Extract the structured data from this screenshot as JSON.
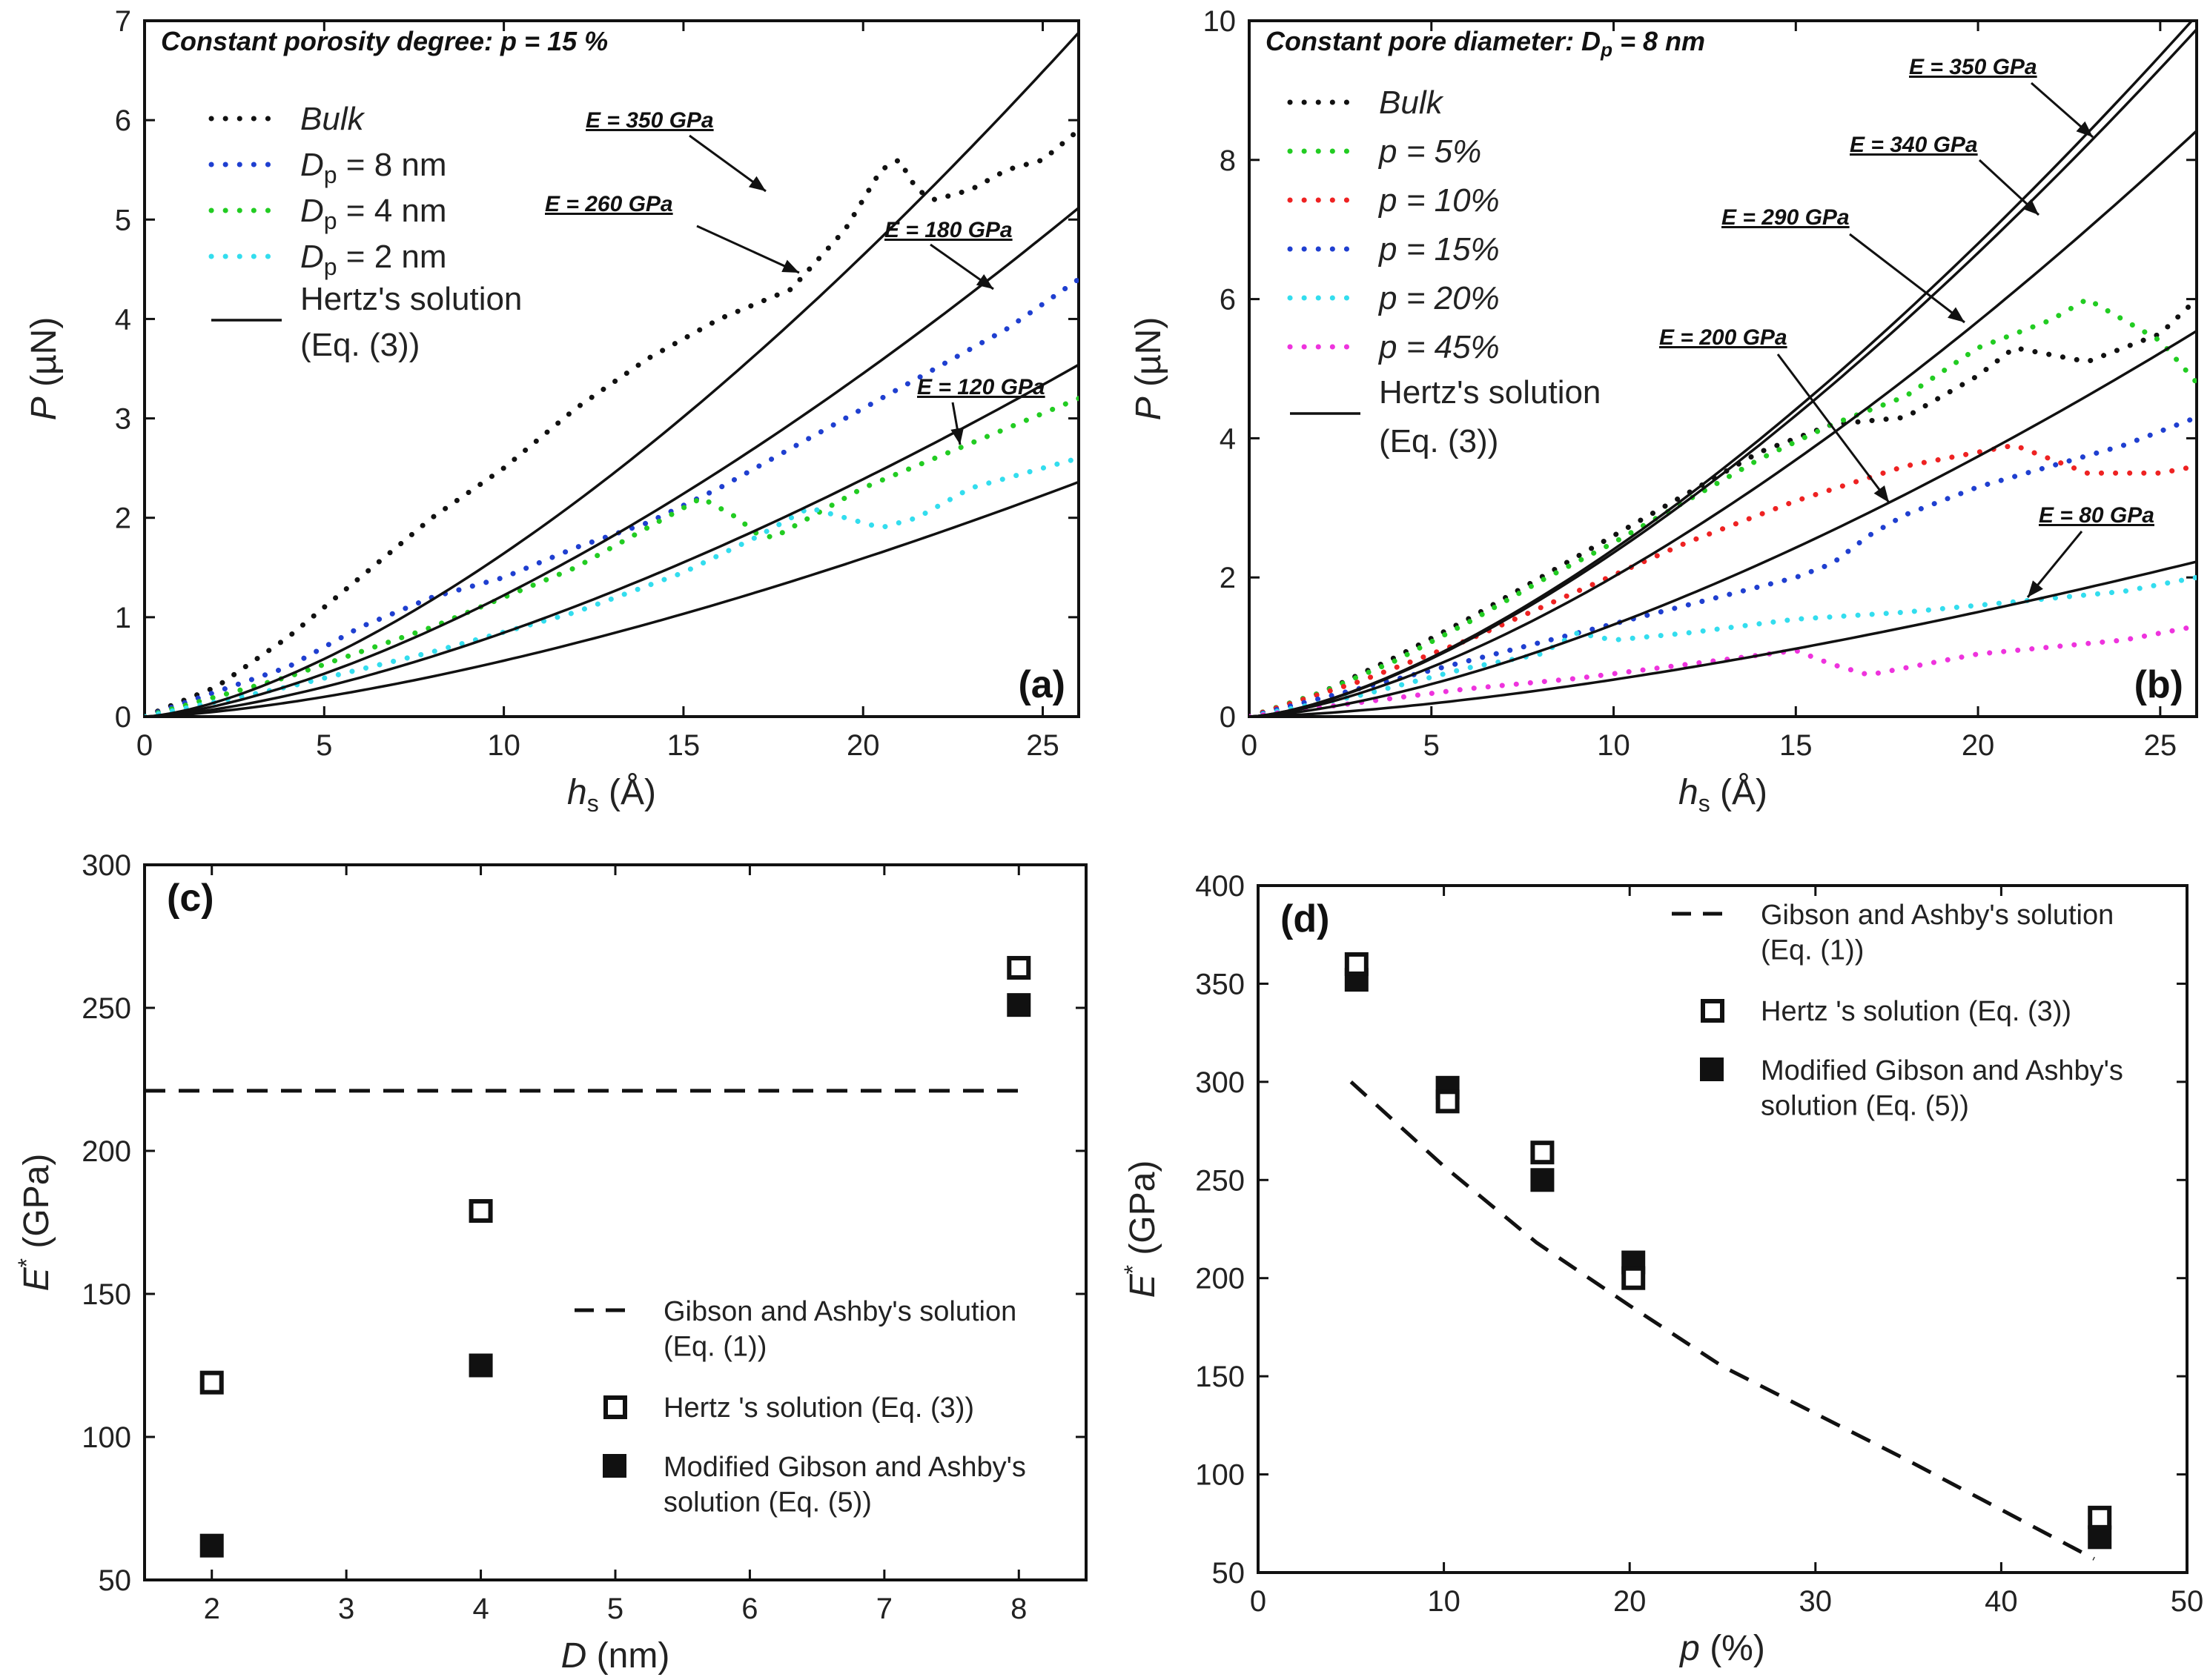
{
  "chart_data": [
    {
      "id": "a",
      "type": "line",
      "title": "Constant porosity degree: p = 15 %",
      "panel_label": "(a)",
      "xlabel_main": "h",
      "xlabel_sub": "s",
      "xlabel_unit": " (Å)",
      "ylabel_main": "P",
      "ylabel_unit": " (µN)",
      "xlim": [
        0,
        26
      ],
      "ylim": [
        0,
        7
      ],
      "xticks": [
        0,
        5,
        10,
        15,
        20,
        25
      ],
      "yticks": [
        0,
        1,
        2,
        3,
        4,
        5,
        6,
        7
      ],
      "series": [
        {
          "name": "Bulk",
          "color": "#111111",
          "style": "dotted",
          "x": [
            0,
            2,
            4,
            6,
            8,
            10,
            12,
            14,
            16,
            18,
            19.5,
            20.5,
            21,
            21.5,
            22,
            23,
            24,
            25,
            26
          ],
          "y": [
            0,
            0.3,
            0.8,
            1.4,
            2.0,
            2.5,
            3.1,
            3.6,
            4.0,
            4.3,
            4.9,
            5.5,
            5.6,
            5.3,
            5.2,
            5.3,
            5.5,
            5.6,
            5.9
          ]
        },
        {
          "name": "D",
          "sub": "p",
          "suffix": " = 8 nm",
          "color": "#1f3fd0",
          "style": "dotted",
          "x": [
            0,
            4,
            6,
            8,
            10,
            12,
            14,
            16,
            18,
            20,
            22,
            24,
            26
          ],
          "y": [
            0,
            0.5,
            0.9,
            1.2,
            1.4,
            1.7,
            1.95,
            2.3,
            2.7,
            3.1,
            3.5,
            3.9,
            4.4
          ]
        },
        {
          "name": "D",
          "sub": "p",
          "suffix": " = 4 nm",
          "color": "#22cc22",
          "style": "dotted",
          "x": [
            0,
            4,
            8,
            12,
            14,
            15.5,
            16.5,
            17,
            17.5,
            18,
            20,
            22,
            24,
            26
          ],
          "y": [
            0,
            0.4,
            0.9,
            1.5,
            1.9,
            2.2,
            2.0,
            1.85,
            1.8,
            1.9,
            2.3,
            2.6,
            2.9,
            3.2
          ]
        },
        {
          "name": "D",
          "sub": "p",
          "suffix": " = 2 nm",
          "color": "#33ddee",
          "style": "dotted",
          "x": [
            0,
            4,
            8,
            12,
            15,
            17,
            18.5,
            19.5,
            20.5,
            21.5,
            23,
            24,
            26
          ],
          "y": [
            0,
            0.3,
            0.65,
            1.05,
            1.45,
            1.8,
            2.1,
            2.0,
            1.9,
            2.0,
            2.3,
            2.4,
            2.6
          ]
        },
        {
          "name": "Hertz's solution",
          "name2": "(Eq. (3))",
          "color": "#111111",
          "style": "solid",
          "hertz_k": [
            0.0519,
            0.0386,
            0.0267,
            0.0178
          ]
        }
      ],
      "annotations": [
        {
          "text": "E = 350 GPa"
        },
        {
          "text": "E = 260 GPa"
        },
        {
          "text": "E = 180 GPa"
        },
        {
          "text": "E = 120 GPa"
        }
      ]
    },
    {
      "id": "b",
      "type": "line",
      "title": "Constant pore diameter: D",
      "title_sub": "p",
      "title_suffix": " = 8 nm",
      "panel_label": "(b)",
      "xlabel_main": "h",
      "xlabel_sub": "s",
      "xlabel_unit": " (Å)",
      "ylabel_main": "P",
      "ylabel_unit": " (µN)",
      "xlim": [
        0,
        26
      ],
      "ylim": [
        0,
        10
      ],
      "xticks": [
        0,
        5,
        10,
        15,
        20,
        25
      ],
      "yticks": [
        0,
        2,
        4,
        6,
        8,
        10
      ],
      "series": [
        {
          "name": "Bulk",
          "color": "#111111",
          "style": "dotted",
          "x": [
            0,
            2,
            4,
            6,
            8,
            10,
            12,
            14,
            16,
            18,
            20,
            21,
            22,
            23,
            24,
            25,
            26
          ],
          "y": [
            0,
            0.35,
            0.85,
            1.4,
            2.0,
            2.6,
            3.2,
            3.8,
            4.2,
            4.3,
            4.9,
            5.3,
            5.2,
            5.1,
            5.3,
            5.5,
            6.0
          ]
        },
        {
          "name": "p = 5%",
          "color": "#22cc22",
          "style": "dotted",
          "x": [
            0,
            2,
            4,
            6,
            8,
            10,
            12,
            14,
            16,
            18,
            20,
            22,
            23,
            24,
            25,
            26
          ],
          "y": [
            0,
            0.35,
            0.8,
            1.35,
            1.95,
            2.5,
            3.1,
            3.7,
            4.2,
            4.6,
            5.3,
            5.7,
            6.0,
            5.7,
            5.4,
            4.8
          ]
        },
        {
          "name": "p = 10%",
          "color": "#ee2222",
          "style": "dotted",
          "x": [
            0,
            3,
            6,
            9,
            12,
            15,
            18,
            20,
            21,
            22,
            23,
            24,
            25,
            26
          ],
          "y": [
            0,
            0.5,
            1.1,
            1.8,
            2.5,
            3.1,
            3.6,
            3.8,
            3.9,
            3.7,
            3.5,
            3.5,
            3.5,
            3.6
          ]
        },
        {
          "name": "p = 15%",
          "color": "#1f3fd0",
          "style": "dotted",
          "x": [
            0,
            3,
            6,
            9,
            12,
            15,
            16,
            17,
            18,
            20,
            22,
            24,
            26
          ],
          "y": [
            0,
            0.4,
            0.8,
            1.2,
            1.6,
            2.0,
            2.2,
            2.6,
            2.9,
            3.3,
            3.6,
            3.9,
            4.3
          ]
        },
        {
          "name": "p = 20%",
          "color": "#33ddee",
          "style": "dotted",
          "x": [
            0,
            3,
            6,
            8,
            9,
            10,
            12,
            15,
            18,
            20,
            22,
            24,
            26
          ],
          "y": [
            0,
            0.3,
            0.7,
            0.9,
            1.2,
            1.1,
            1.2,
            1.4,
            1.5,
            1.6,
            1.7,
            1.8,
            2.0
          ]
        },
        {
          "name": "p = 45%",
          "color": "#ee33dd",
          "style": "dotted",
          "x": [
            0,
            3,
            6,
            9,
            12,
            15,
            16,
            17,
            18,
            20,
            22,
            24,
            26
          ],
          "y": [
            0,
            0.2,
            0.4,
            0.55,
            0.75,
            0.95,
            0.75,
            0.6,
            0.7,
            0.9,
            1.0,
            1.1,
            1.3
          ]
        },
        {
          "name": "Hertz's solution",
          "name2": "(Eq. (3))",
          "color": "#111111",
          "style": "solid",
          "hertz_k": [
            0.076,
            0.0745,
            0.0635,
            0.0418,
            0.0168
          ]
        }
      ],
      "annotations": [
        {
          "text": "E = 350 GPa"
        },
        {
          "text": "E = 340 GPa"
        },
        {
          "text": "E = 290 GPa"
        },
        {
          "text": "E = 200 GPa"
        },
        {
          "text": "E = 80 GPa"
        }
      ]
    },
    {
      "id": "c",
      "type": "scatter",
      "panel_label": "(c)",
      "xlabel_main": "D",
      "xlabel_unit": " (nm)",
      "ylabel_main": "E",
      "ylabel_sup": "*",
      "ylabel_unit": " (GPa)",
      "xlim": [
        1.5,
        8.5
      ],
      "ylim": [
        50,
        300
      ],
      "xticks": [
        2,
        3,
        4,
        5,
        6,
        7,
        8
      ],
      "yticks": [
        50,
        100,
        150,
        200,
        250,
        300
      ],
      "gibson_ashby": {
        "name": "Gibson and Ashby's solution",
        "name2": "(Eq. (1))",
        "x": [
          1.5,
          8
        ],
        "y": [
          221,
          221
        ]
      },
      "hertz": {
        "name": "Hertz 's solution (Eq. (3))",
        "x": [
          2,
          4,
          8
        ],
        "y": [
          119,
          179,
          264
        ]
      },
      "modified": {
        "name": "Modified Gibson and Ashby's",
        "name2": "solution  (Eq. (5))",
        "x": [
          2,
          4,
          8
        ],
        "y": [
          62,
          125,
          251
        ]
      }
    },
    {
      "id": "d",
      "type": "scatter",
      "panel_label": "(d)",
      "xlabel_main": "p",
      "xlabel_unit": " (%)",
      "ylabel_main": "E",
      "ylabel_sup": "*",
      "ylabel_unit": " (GPa)",
      "xlim": [
        0,
        50
      ],
      "ylim": [
        50,
        400
      ],
      "xticks": [
        0,
        10,
        20,
        30,
        40,
        50
      ],
      "yticks": [
        50,
        100,
        150,
        200,
        250,
        300,
        350,
        400
      ],
      "gibson_ashby": {
        "name": "Gibson and Ashby's solution",
        "name2": "(Eq. (1))",
        "x": [
          5,
          10,
          15,
          20,
          25,
          30,
          35,
          40,
          45
        ],
        "y": [
          300,
          257,
          218,
          186,
          155,
          131,
          107,
          82,
          57
        ]
      },
      "hertz": {
        "name": "Hertz 's solution (Eq. (3))",
        "x": [
          5.3,
          10.2,
          15.3,
          20.2,
          45.3
        ],
        "y": [
          360,
          290,
          264,
          200,
          78
        ]
      },
      "modified": {
        "name": "Modified Gibson and Ashby's",
        "name2": "solution  (Eq. (5))",
        "x": [
          5.3,
          10.2,
          15.3,
          20.2,
          45.3
        ],
        "y": [
          352,
          297,
          250,
          208,
          68
        ]
      }
    }
  ]
}
